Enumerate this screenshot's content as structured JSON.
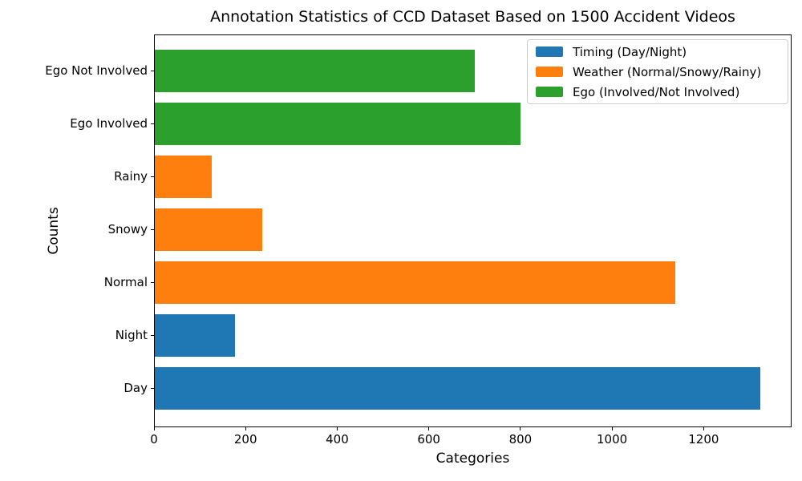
{
  "chart_data": {
    "type": "bar",
    "orientation": "horizontal",
    "title": "Annotation Statistics of CCD Dataset Based on 1500 Accident Videos",
    "xlabel": "Categories",
    "ylabel": "Counts",
    "xlim": [
      0,
      1392
    ],
    "xticks": [
      0,
      200,
      400,
      600,
      800,
      1000,
      1200
    ],
    "grid": false,
    "bar_order": "bottom-to-top",
    "bars": [
      {
        "category": "Day",
        "value": 1325,
        "group": "timing"
      },
      {
        "category": "Night",
        "value": 175,
        "group": "timing"
      },
      {
        "category": "Normal",
        "value": 1140,
        "group": "weather"
      },
      {
        "category": "Snowy",
        "value": 235,
        "group": "weather"
      },
      {
        "category": "Rainy",
        "value": 125,
        "group": "weather"
      },
      {
        "category": "Ego Involved",
        "value": 800,
        "group": "ego"
      },
      {
        "category": "Ego Not Involved",
        "value": 700,
        "group": "ego"
      }
    ],
    "legend": [
      {
        "group": "timing",
        "label": "Timing (Day/Night)",
        "color": "#1f77b4"
      },
      {
        "group": "weather",
        "label": "Weather (Normal/Snowy/Rainy)",
        "color": "#ff7f0e"
      },
      {
        "group": "ego",
        "label": "Ego (Involved/Not Involved)",
        "color": "#2ca02c"
      }
    ],
    "legend_position": "upper right",
    "axis_color": "#000000",
    "background_color": "#ffffff"
  }
}
